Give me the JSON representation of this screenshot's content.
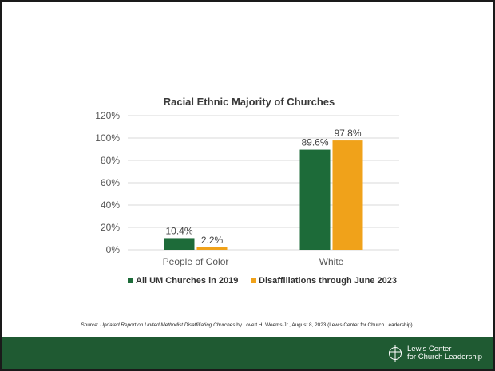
{
  "chart_data": {
    "type": "bar",
    "title": "Racial Ethnic Majority of Churches",
    "categories": [
      "People of Color",
      "White"
    ],
    "series": [
      {
        "name": "All UM Churches in 2019",
        "values": [
          10.4,
          89.6
        ],
        "labels": [
          "10.4%",
          "89.6%"
        ],
        "color": "#1d6b39"
      },
      {
        "name": "Disaffiliations through June 2023",
        "values": [
          2.2,
          97.8
        ],
        "labels": [
          "2.2%",
          "97.8%"
        ],
        "color": "#f0a21a"
      }
    ],
    "ylim": [
      0,
      120
    ],
    "yticks": [
      0,
      20,
      40,
      60,
      80,
      100,
      120
    ],
    "ytick_labels": [
      "0%",
      "20%",
      "40%",
      "60%",
      "80%",
      "100%",
      "120%"
    ],
    "grid": true,
    "legend_position": "bottom"
  },
  "source": {
    "prefix": "Source: ",
    "title": "Updated Report on United Methodist Disaffiliating Churches",
    "suffix": " by Lovett H. Weems Jr., August 8, 2023 (Lewis Center for Church Leadership)."
  },
  "footer": {
    "logo_line1": "Lewis Center",
    "logo_line2": "for Church Leadership",
    "background": "#1f5a32"
  }
}
